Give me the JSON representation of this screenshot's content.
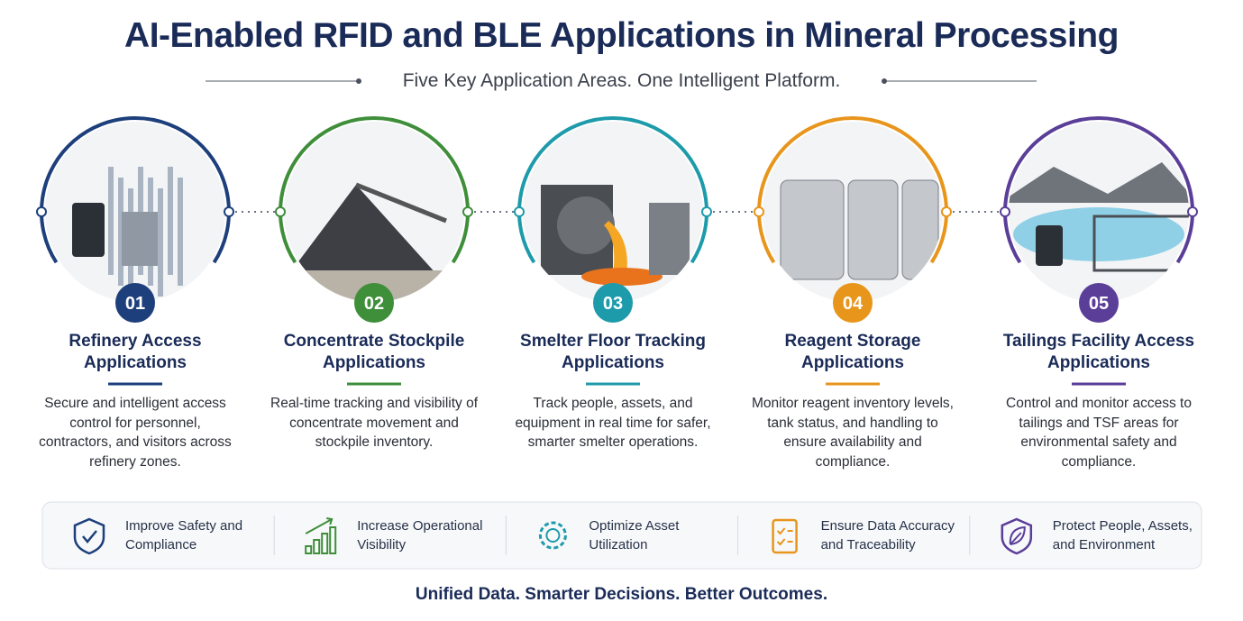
{
  "header": {
    "title": "AI-Enabled RFID and BLE Applications in Mineral Processing",
    "subtitle": "Five Key Application Areas. One Intelligent Platform."
  },
  "areas": [
    {
      "number": "01",
      "title": "Refinery Access Applications",
      "description": "Secure and intelligent access control for personnel, contractors, and visitors across refinery zones.",
      "color": "#1d3f7c"
    },
    {
      "number": "02",
      "title": "Concentrate Stockpile Applications",
      "description": "Real-time tracking and visibility of concentrate movement and stockpile inventory.",
      "color": "#3e8e3a"
    },
    {
      "number": "03",
      "title": "Smelter Floor Tracking Applications",
      "description": "Track people, assets, and equipment in real time for safer, smarter smelter operations.",
      "color": "#1e9bab"
    },
    {
      "number": "04",
      "title": "Reagent Storage Applications",
      "description": "Monitor reagent inventory levels, tank status, and handling to ensure availability and compliance.",
      "color": "#e8951c"
    },
    {
      "number": "05",
      "title": "Tailings Facility Access Applications",
      "description": "Control and monitor access to tailings and TSF areas for environmental safety and compliance.",
      "color": "#5a3e98"
    }
  ],
  "benefits": [
    {
      "text": "Improve Safety and Compliance",
      "color": "#1d3f7c"
    },
    {
      "text": "Increase Operational Visibility",
      "color": "#3e8e3a"
    },
    {
      "text": "Optimize Asset Utilization",
      "color": "#1e9bab"
    },
    {
      "text": "Ensure Data Accuracy and Traceability",
      "color": "#e8951c"
    },
    {
      "text": "Protect People, Assets, and Environment",
      "color": "#5a3e98"
    }
  ],
  "footer": {
    "tagline": "Unified Data. Smarter Decisions. Better Outcomes."
  }
}
